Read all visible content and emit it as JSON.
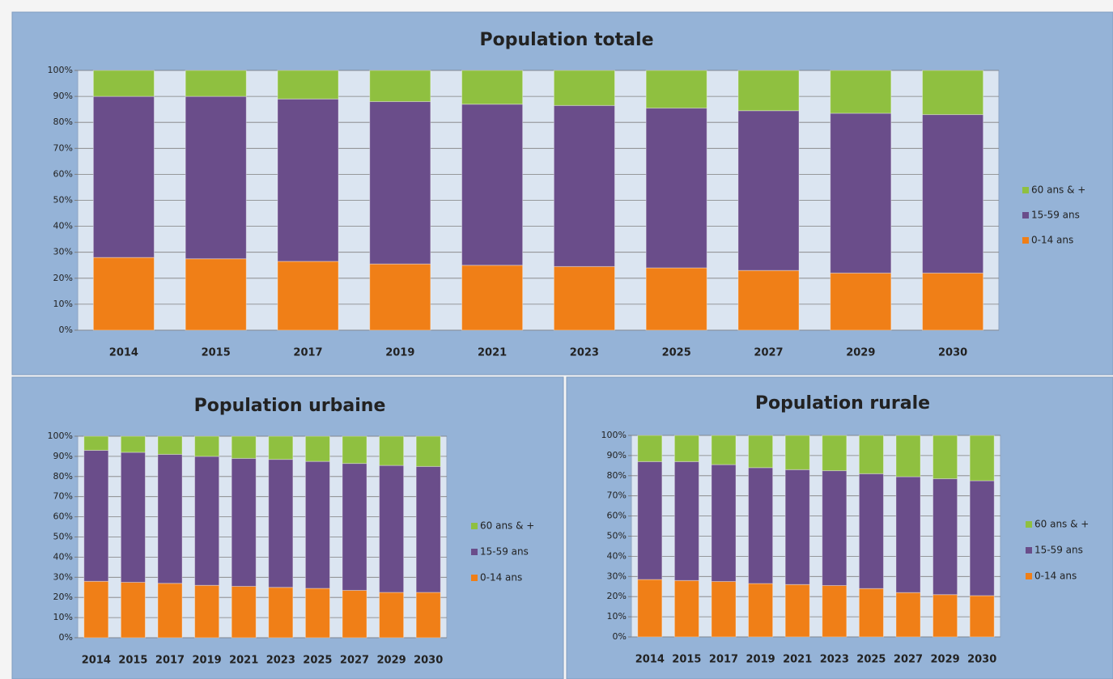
{
  "chart_data": [
    {
      "type": "bar",
      "stacked": true,
      "title": "Population totale",
      "categories": [
        "2014",
        "2015",
        "2017",
        "2019",
        "2021",
        "2023",
        "2025",
        "2027",
        "2029",
        "2030"
      ],
      "series": [
        {
          "name": "0-14 ans",
          "color": "#f07f17",
          "values": [
            28,
            27.5,
            26.5,
            25.5,
            25,
            24.5,
            24,
            23,
            22,
            22
          ]
        },
        {
          "name": "15-59 ans",
          "color": "#6a4d8a",
          "values": [
            62,
            62.5,
            62.5,
            62.5,
            62,
            62,
            61.5,
            61.5,
            61.5,
            61
          ]
        },
        {
          "name": "60 ans & +",
          "color": "#8fc040",
          "values": [
            10,
            10,
            11,
            12,
            13,
            13.5,
            14.5,
            15.5,
            16.5,
            17
          ]
        }
      ],
      "ylim": [
        0,
        100
      ],
      "yticks": [
        {
          "value": 0,
          "label": "0%"
        },
        {
          "value": 10,
          "label": "10%"
        },
        {
          "value": 20,
          "label": "20%"
        },
        {
          "value": 30,
          "label": "30%"
        },
        {
          "value": 40,
          "label": "40%"
        },
        {
          "value": 50,
          "label": "50%"
        },
        {
          "value": 60,
          "label": "60%"
        },
        {
          "value": 70,
          "label": "70%"
        },
        {
          "value": 80,
          "label": "80%"
        },
        {
          "value": 90,
          "label": "90%"
        },
        {
          "value": 100,
          "label": "100%"
        }
      ],
      "grid": true,
      "legend": "right"
    },
    {
      "type": "bar",
      "stacked": true,
      "title": "Population urbaine",
      "categories": [
        "2014",
        "2015",
        "2017",
        "2019",
        "2021",
        "2023",
        "2025",
        "2027",
        "2029",
        "2030"
      ],
      "series": [
        {
          "name": "0-14 ans",
          "color": "#f07f17",
          "values": [
            28,
            27.5,
            27,
            26,
            25.5,
            25,
            24.5,
            23.5,
            22.5,
            22.5
          ]
        },
        {
          "name": "15-59 ans",
          "color": "#6a4d8a",
          "values": [
            65,
            64.5,
            64,
            64,
            63.5,
            63.5,
            63,
            63,
            63,
            62.5
          ]
        },
        {
          "name": "60 ans & +",
          "color": "#8fc040",
          "values": [
            7,
            8,
            9,
            10,
            11,
            11.5,
            12.5,
            13.5,
            14.5,
            15
          ]
        }
      ],
      "ylim": [
        0,
        100
      ],
      "yticks": [
        {
          "value": 0,
          "label": "0%"
        },
        {
          "value": 10,
          "label": "10%"
        },
        {
          "value": 20,
          "label": "20%"
        },
        {
          "value": 30,
          "label": "30%"
        },
        {
          "value": 40,
          "label": "40%"
        },
        {
          "value": 50,
          "label": "50%"
        },
        {
          "value": 60,
          "label": "60%"
        },
        {
          "value": 70,
          "label": "70%"
        },
        {
          "value": 80,
          "label": "80%"
        },
        {
          "value": 90,
          "label": "90%"
        },
        {
          "value": 100,
          "label": "100%"
        }
      ],
      "grid": true,
      "legend": "right"
    },
    {
      "type": "bar",
      "stacked": true,
      "title": "Population rurale",
      "categories": [
        "2014",
        "2015",
        "2017",
        "2019",
        "2021",
        "2023",
        "2025",
        "2027",
        "2029",
        "2030"
      ],
      "series": [
        {
          "name": "0-14 ans",
          "color": "#f07f17",
          "values": [
            28.5,
            28,
            27.5,
            26.5,
            26,
            25.5,
            24,
            22,
            21,
            20.5
          ]
        },
        {
          "name": "15-59 ans",
          "color": "#6a4d8a",
          "values": [
            58.5,
            59,
            58,
            57.5,
            57,
            57,
            57,
            57.5,
            57.5,
            57
          ]
        },
        {
          "name": "60 ans & +",
          "color": "#8fc040",
          "values": [
            13,
            13,
            14.5,
            16,
            17,
            17.5,
            19,
            20.5,
            21.5,
            22.5
          ]
        }
      ],
      "ylim": [
        0,
        100
      ],
      "yticks": [
        {
          "value": 0,
          "label": "0%"
        },
        {
          "value": 10,
          "label": "10%"
        },
        {
          "value": 20,
          "label": "20%"
        },
        {
          "value": 30,
          "label": "30%"
        },
        {
          "value": 40,
          "label": "40%"
        },
        {
          "value": 50,
          "label": "50%"
        },
        {
          "value": 60,
          "label": "60%"
        },
        {
          "value": 70,
          "label": "70%"
        },
        {
          "value": 80,
          "label": "80%"
        },
        {
          "value": 90,
          "label": "90%"
        },
        {
          "value": 100,
          "label": "100%"
        }
      ],
      "grid": true,
      "legend": "right"
    }
  ]
}
